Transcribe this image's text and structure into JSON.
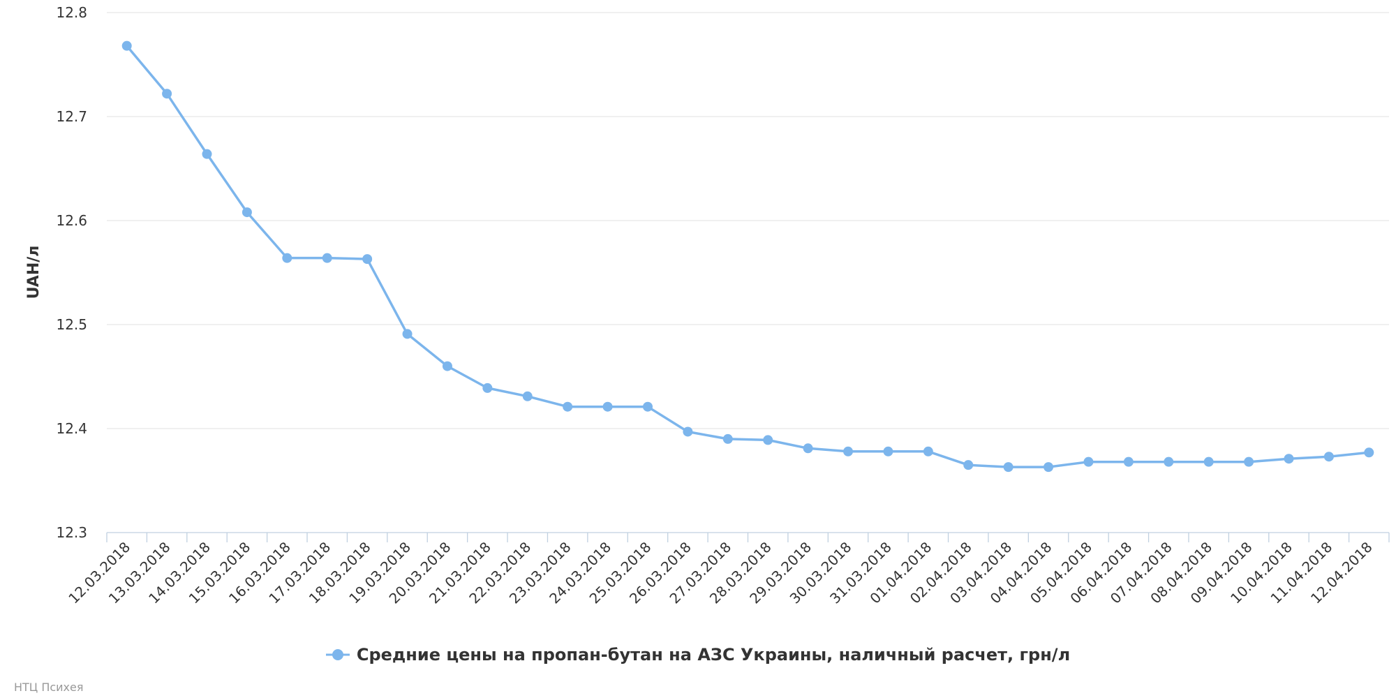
{
  "chart_data": {
    "type": "line",
    "title": "",
    "xlabel": "",
    "ylabel": "UAH/л",
    "ylim": [
      12.3,
      12.8
    ],
    "yticks": [
      "12.3",
      "12.4",
      "12.5",
      "12.6",
      "12.7",
      "12.8"
    ],
    "grid": true,
    "legend_position": "bottom-center",
    "categories": [
      "12.03.2018",
      "13.03.2018",
      "14.03.2018",
      "15.03.2018",
      "16.03.2018",
      "17.03.2018",
      "18.03.2018",
      "19.03.2018",
      "20.03.2018",
      "21.03.2018",
      "22.03.2018",
      "23.03.2018",
      "24.03.2018",
      "25.03.2018",
      "26.03.2018",
      "27.03.2018",
      "28.03.2018",
      "29.03.2018",
      "30.03.2018",
      "31.03.2018",
      "01.04.2018",
      "02.04.2018",
      "03.04.2018",
      "04.04.2018",
      "05.04.2018",
      "06.04.2018",
      "07.04.2018",
      "08.04.2018",
      "09.04.2018",
      "10.04.2018",
      "11.04.2018",
      "12.04.2018"
    ],
    "series": [
      {
        "name": "Средние цены на пропан-бутан на АЗС Украины, наличный расчет, грн/л",
        "color": "#7cb5ec",
        "values": [
          12.768,
          12.722,
          12.664,
          12.608,
          12.564,
          12.564,
          12.563,
          12.491,
          12.46,
          12.439,
          12.431,
          12.421,
          12.421,
          12.421,
          12.397,
          12.39,
          12.389,
          12.381,
          12.378,
          12.378,
          12.378,
          12.365,
          12.363,
          12.363,
          12.368,
          12.368,
          12.368,
          12.368,
          12.368,
          12.371,
          12.373,
          12.377
        ]
      }
    ]
  },
  "credits": "НТЦ Психея",
  "colors": {
    "grid": "#e6e6e6",
    "axis": "#c0d0e0",
    "text": "#333333"
  }
}
